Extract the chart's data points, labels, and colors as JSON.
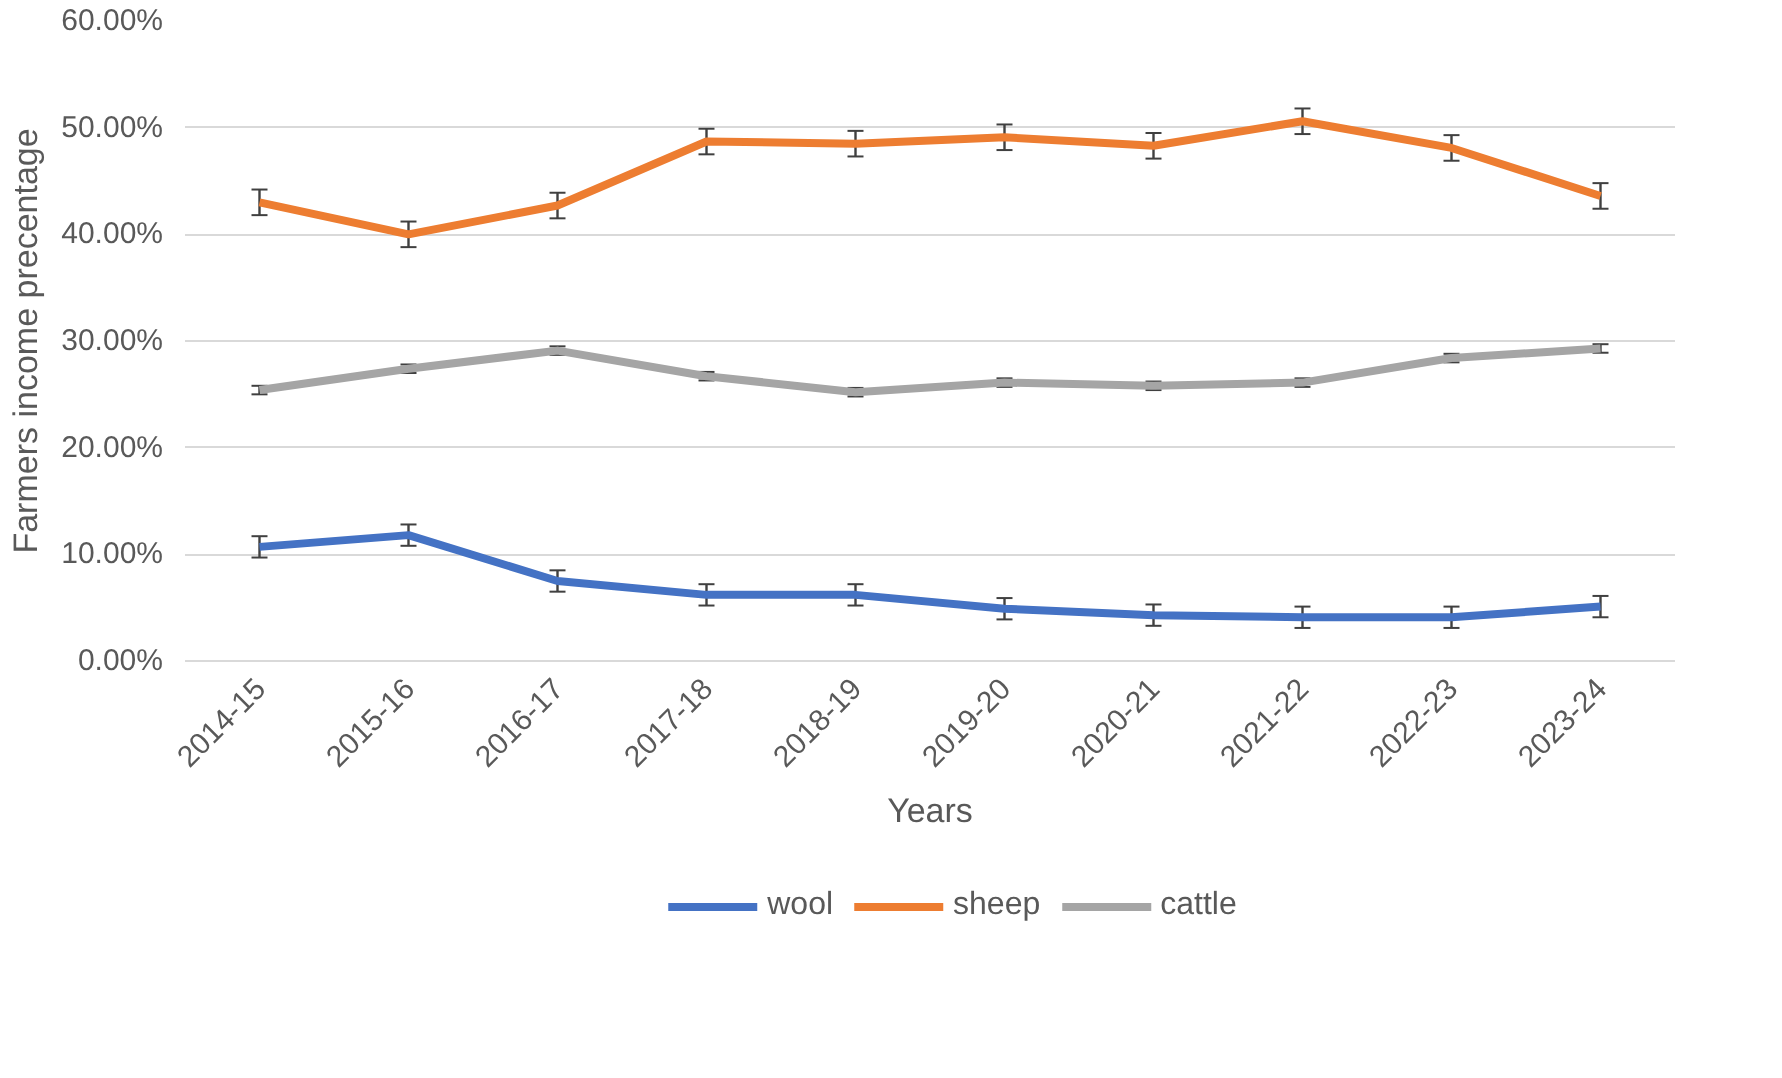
{
  "chart_data": {
    "type": "line",
    "xlabel": "Years",
    "ylabel": "Farmers income precentage",
    "categories": [
      "2014-15",
      "2015-16",
      "2016-17",
      "2017-18",
      "2018-19",
      "2019-20",
      "2020-21",
      "2021-22",
      "2022-23",
      "2023-24"
    ],
    "series": [
      {
        "name": "wool",
        "color": "#4472c4",
        "values": [
          10.7,
          11.8,
          7.5,
          6.2,
          6.2,
          4.9,
          4.3,
          4.1,
          4.1,
          5.1
        ],
        "errors": [
          1,
          1,
          1,
          1,
          1,
          1,
          1,
          1,
          1,
          1
        ]
      },
      {
        "name": "sheep",
        "color": "#ed7d31",
        "values": [
          43.0,
          40.0,
          42.7,
          48.7,
          48.5,
          49.1,
          48.3,
          50.6,
          48.1,
          43.6
        ],
        "errors": [
          1.2,
          1.2,
          1.2,
          1.2,
          1.2,
          1.2,
          1.2,
          1.2,
          1.2,
          1.2
        ]
      },
      {
        "name": "cattle",
        "color": "#a5a5a5",
        "values": [
          25.4,
          27.4,
          29.1,
          26.7,
          25.2,
          26.1,
          25.8,
          26.1,
          28.4,
          29.3
        ],
        "errors": [
          0.4,
          0.4,
          0.4,
          0.4,
          0.4,
          0.4,
          0.4,
          0.4,
          0.4,
          0.4
        ]
      }
    ],
    "ylim": [
      0,
      60
    ],
    "yticks": [
      {
        "value": 0,
        "label": "0.00%"
      },
      {
        "value": 10,
        "label": "10.00%"
      },
      {
        "value": 20,
        "label": "20.00%"
      },
      {
        "value": 30,
        "label": "30.00%"
      },
      {
        "value": 40,
        "label": "40.00%"
      },
      {
        "value": 50,
        "label": "50.00%"
      },
      {
        "value": 60,
        "label": "60.00%"
      }
    ],
    "grid": "y",
    "legend": "bottom",
    "marker": "none",
    "line_style": "solid"
  }
}
